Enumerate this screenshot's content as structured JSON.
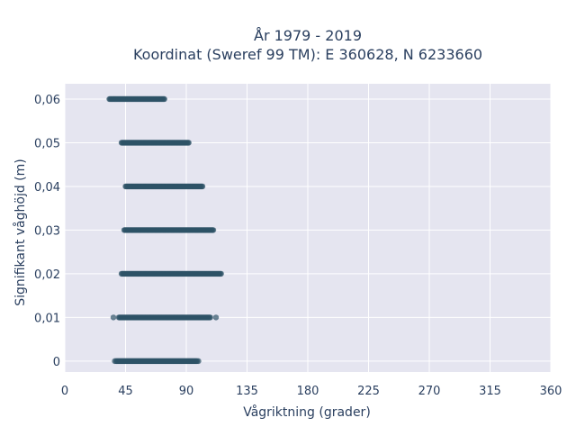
{
  "chart_data": {
    "type": "scatter",
    "title": "År 1979 - 2019",
    "subtitle": "Koordinat (Sweref 99 TM): E 360628, N 6233660",
    "xlabel": "Vågriktning (grader)",
    "ylabel": "Signifikant våghöjd (m)",
    "xlim": [
      0,
      360
    ],
    "ylim": [
      -0.0025,
      0.0635
    ],
    "x_ticks": [
      "0",
      "45",
      "90",
      "135",
      "180",
      "225",
      "270",
      "315",
      "360"
    ],
    "x_tick_values": [
      0,
      45,
      90,
      135,
      180,
      225,
      270,
      315,
      360
    ],
    "y_ticks": [
      "0",
      "0,01",
      "0,02",
      "0,03",
      "0,04",
      "0,05",
      "0,06"
    ],
    "y_tick_values": [
      0,
      0.01,
      0.02,
      0.03,
      0.04,
      0.05,
      0.06
    ],
    "grid": true,
    "marker_color": "#2e5266",
    "plot_bg": "#e5e5f0",
    "series": [
      {
        "bands": [
          {
            "y": 0.0,
            "x_dense": [
              38,
              98
            ],
            "x_outliers": [
              37,
              99
            ]
          },
          {
            "y": 0.01,
            "x_dense": [
              40,
              108
            ],
            "x_outliers": [
              36,
              112
            ]
          },
          {
            "y": 0.02,
            "x_dense": [
              42,
              116
            ],
            "x_outliers": []
          },
          {
            "y": 0.03,
            "x_dense": [
              44,
              110
            ],
            "x_outliers": []
          },
          {
            "y": 0.04,
            "x_dense": [
              45,
              102
            ],
            "x_outliers": []
          },
          {
            "y": 0.05,
            "x_dense": [
              42,
              92
            ],
            "x_outliers": []
          },
          {
            "y": 0.06,
            "x_dense": [
              33,
              74
            ],
            "x_outliers": []
          }
        ]
      }
    ]
  }
}
